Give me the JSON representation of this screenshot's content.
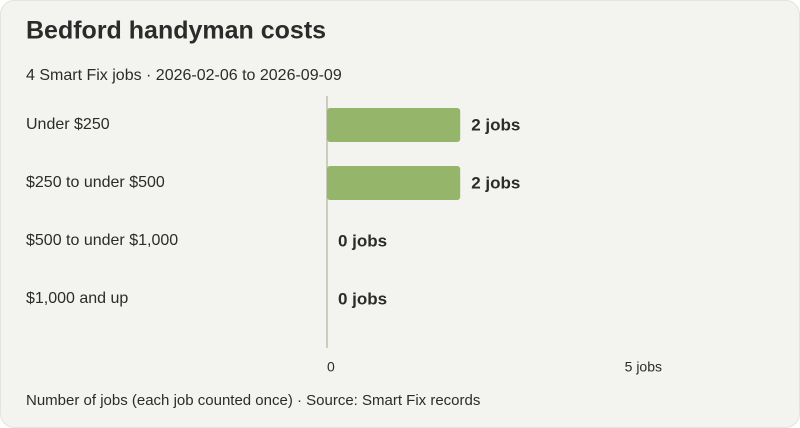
{
  "chart_data": {
    "type": "bar",
    "orientation": "horizontal",
    "title": "Bedford handyman costs",
    "subtitle": "4 Smart Fix jobs · 2026-02-06 to 2026-09-09",
    "categories": [
      "Under $250",
      "$250 to under $500",
      "$500 to under $1,000",
      "$1,000 and up"
    ],
    "values": [
      2,
      2,
      0,
      0
    ],
    "value_labels": [
      "2 jobs",
      "2 jobs",
      "0 jobs",
      "0 jobs"
    ],
    "color": "#95b56b",
    "xlim": [
      0,
      5
    ],
    "xticks": [
      0,
      {
        "value": 5,
        "label": "5 jobs"
      }
    ],
    "xlabel": "Number of jobs (each job counted once) · Source: Smart Fix records"
  }
}
